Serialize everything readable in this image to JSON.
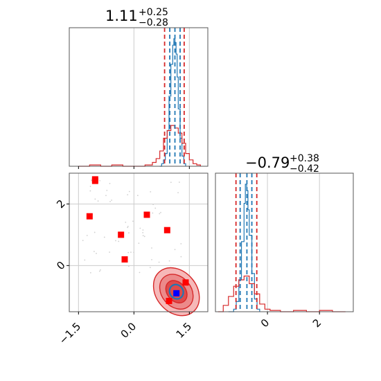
{
  "chart_data": [
    {
      "type": "histogram",
      "panel": "top-left",
      "title_value": "1.11",
      "title_upper": "+0.25",
      "title_lower": "−0.28",
      "xlim": [
        -1.75,
        2.0
      ],
      "grid": true,
      "vlines_red": [
        0.83,
        1.36
      ],
      "vlines_blue": [
        0.97,
        1.11,
        1.25
      ],
      "series": [
        {
          "color": "#1f77b4",
          "x": [
            0.7,
            0.75,
            0.8,
            0.85,
            0.9,
            0.95,
            1.0,
            1.05,
            1.08,
            1.11,
            1.14,
            1.17,
            1.2,
            1.25,
            1.3,
            1.35,
            1.4
          ],
          "y": [
            0.0,
            0.02,
            0.05,
            0.1,
            0.28,
            0.55,
            0.8,
            0.95,
            1.0,
            0.97,
            0.88,
            0.7,
            0.45,
            0.22,
            0.08,
            0.02,
            0.0
          ]
        },
        {
          "color": "#d62728",
          "x": [
            -1.5,
            -1.2,
            -0.9,
            -0.6,
            -0.3,
            0.0,
            0.3,
            0.5,
            0.6,
            0.7,
            0.8,
            0.9,
            1.0,
            1.1,
            1.2,
            1.3,
            1.4,
            1.5,
            1.6,
            1.7,
            1.8
          ],
          "y": [
            0.0,
            0.01,
            0.0,
            0.01,
            0.0,
            0.0,
            0.01,
            0.03,
            0.06,
            0.12,
            0.22,
            0.28,
            0.32,
            0.3,
            0.26,
            0.18,
            0.1,
            0.05,
            0.02,
            0.01,
            0.0
          ]
        }
      ]
    },
    {
      "type": "histogram",
      "panel": "bottom-right",
      "title_value": "−0.79",
      "title_upper": "+0.38",
      "title_lower": "−0.42",
      "xlim": [
        -2.0,
        3.3
      ],
      "xticks": [
        "0",
        "2"
      ],
      "xtick_values": [
        0,
        2
      ],
      "grid": true,
      "vlines_red": [
        -1.21,
        -0.41
      ],
      "vlines_blue": [
        -1.05,
        -0.79,
        -0.6
      ],
      "series": [
        {
          "color": "#1f77b4",
          "x": [
            -1.5,
            -1.3,
            -1.2,
            -1.1,
            -1.0,
            -0.9,
            -0.85,
            -0.8,
            -0.75,
            -0.7,
            -0.6,
            -0.5,
            -0.4,
            -0.3
          ],
          "y": [
            0.0,
            0.02,
            0.08,
            0.25,
            0.55,
            0.85,
            1.0,
            0.95,
            0.8,
            0.6,
            0.3,
            0.1,
            0.02,
            0.0
          ]
        },
        {
          "color": "#d62728",
          "x": [
            -1.9,
            -1.7,
            -1.5,
            -1.3,
            -1.1,
            -0.9,
            -0.7,
            -0.5,
            -0.3,
            -0.1,
            0.1,
            0.5,
            1.0,
            1.5,
            2.0,
            2.5,
            3.0
          ],
          "y": [
            0.0,
            0.05,
            0.12,
            0.2,
            0.25,
            0.28,
            0.22,
            0.14,
            0.06,
            0.02,
            0.01,
            0.0,
            0.01,
            0.0,
            0.01,
            0.0,
            0.0
          ]
        }
      ]
    },
    {
      "type": "scatter",
      "panel": "bottom-left",
      "xlim": [
        -1.75,
        2.0
      ],
      "ylim": [
        -1.5,
        3.0
      ],
      "xticks": [
        "−1.5",
        "0.0",
        "1.5"
      ],
      "xtick_values": [
        -1.5,
        0.0,
        1.5
      ],
      "yticks": [
        "0",
        "2"
      ],
      "ytick_values": [
        0,
        2
      ],
      "grid": true,
      "red_markers": [
        {
          "x": -1.05,
          "y": 2.75
        },
        {
          "x": -1.05,
          "y": 2.8
        },
        {
          "x": -1.2,
          "y": 1.6
        },
        {
          "x": -0.35,
          "y": 1.0
        },
        {
          "x": -0.25,
          "y": 0.2
        },
        {
          "x": 0.35,
          "y": 1.65
        },
        {
          "x": 0.9,
          "y": 1.15
        },
        {
          "x": 1.4,
          "y": -0.55
        },
        {
          "x": 0.95,
          "y": -1.15
        }
      ],
      "blue_markers": [
        {
          "x": 1.15,
          "y": -0.9
        }
      ],
      "contour_center": {
        "x": 1.15,
        "y": -0.85
      },
      "contour_levels": [
        {
          "rx": 0.55,
          "ry": 0.85,
          "fill": "#f6b8b8"
        },
        {
          "rx": 0.4,
          "ry": 0.62,
          "fill": "#ec8a8a"
        },
        {
          "rx": 0.25,
          "ry": 0.4,
          "fill": "#df4a4a"
        }
      ],
      "inner_contour": {
        "rx": 0.18,
        "ry": 0.24,
        "color": "#1f77b4"
      }
    }
  ]
}
